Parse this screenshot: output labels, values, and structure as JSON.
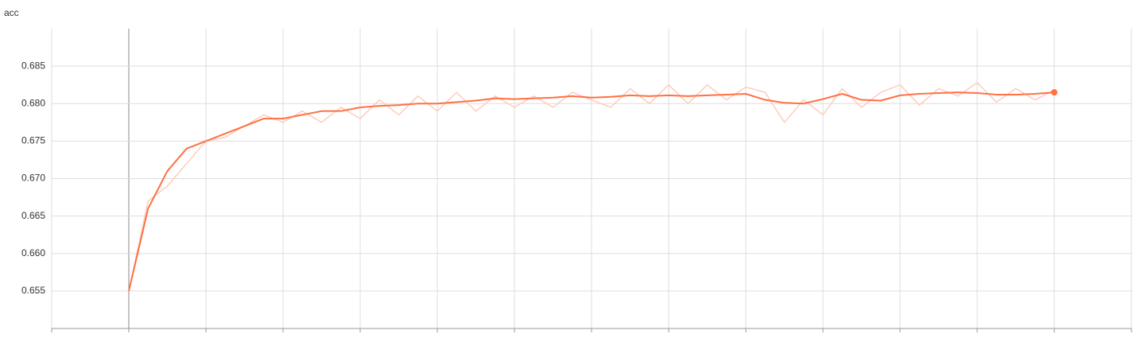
{
  "chart_data": {
    "type": "line",
    "title": "acc",
    "series": [
      {
        "color": "#ffccbc",
        "values": [
          0.655,
          0.667,
          0.669,
          0.672,
          0.675,
          0.6755,
          0.677,
          0.6785,
          0.6775,
          0.679,
          0.6775,
          0.6795,
          0.678,
          0.6805,
          0.6785,
          0.681,
          0.679,
          0.6815,
          0.679,
          0.681,
          0.6795,
          0.681,
          0.6795,
          0.6815,
          0.6805,
          0.6795,
          0.682,
          0.68,
          0.6825,
          0.68,
          0.6825,
          0.6805,
          0.6822,
          0.6815,
          0.6775,
          0.6805,
          0.6785,
          0.682,
          0.6795,
          0.6815,
          0.6825,
          0.6798,
          0.682,
          0.681,
          0.6828,
          0.6802,
          0.682,
          0.6805,
          0.6818
        ]
      },
      {
        "color": "#ff7043",
        "values": [
          0.655,
          0.666,
          0.671,
          0.674,
          0.675,
          0.676,
          0.677,
          0.678,
          0.678,
          0.6785,
          0.679,
          0.679,
          0.6795,
          0.6797,
          0.6798,
          0.68,
          0.68,
          0.6802,
          0.6804,
          0.6807,
          0.6806,
          0.6807,
          0.6808,
          0.681,
          0.6808,
          0.6809,
          0.6811,
          0.681,
          0.6811,
          0.681,
          0.6811,
          0.6812,
          0.6813,
          0.6805,
          0.6801,
          0.68,
          0.6806,
          0.6813,
          0.6805,
          0.6804,
          0.6811,
          0.6813,
          0.6814,
          0.6815,
          0.6814,
          0.6812,
          0.6812,
          0.6813,
          0.6815
        ]
      }
    ],
    "ylim": [
      0.65,
      0.69
    ],
    "yticks": [
      0.655,
      {
        "value": 0.66,
        "label": "0.660"
      },
      0.665,
      {
        "value": 0.67,
        "label": "0.670"
      },
      0.675,
      {
        "value": 0.68,
        "label": "0.680"
      },
      0.685
    ],
    "grid": true
  }
}
